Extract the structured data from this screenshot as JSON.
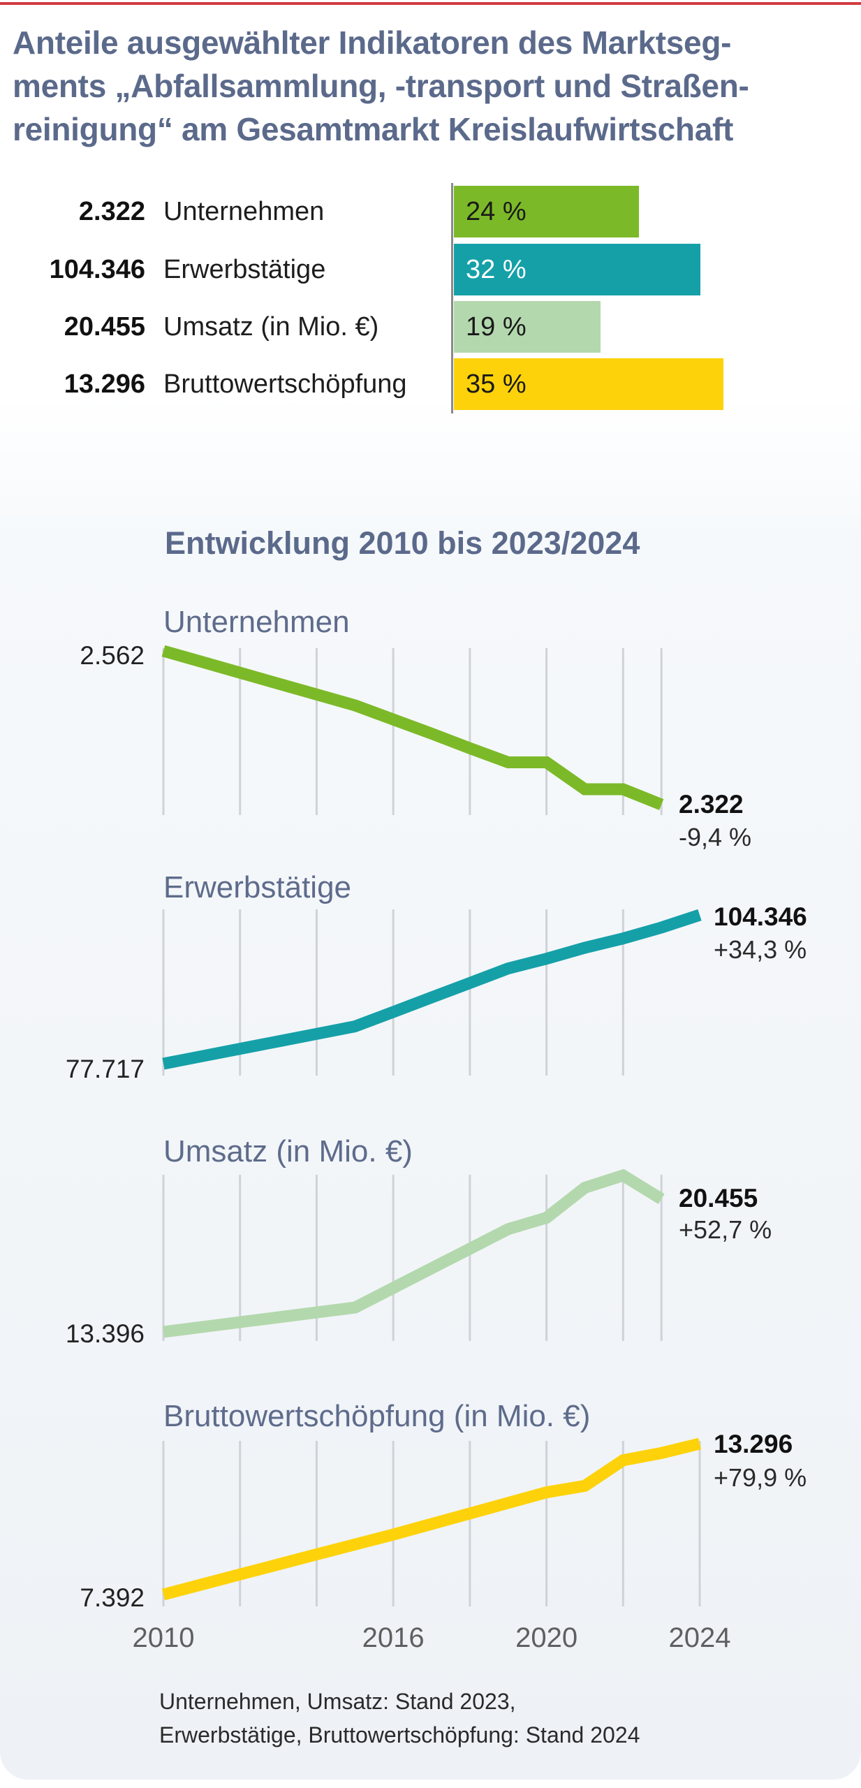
{
  "title_lines": [
    "Anteile ausgewählter Indikatoren des Marktseg-",
    "ments „Abfallsammlung, -transport und Straßen-",
    "reinigung“ am Gesamtmarkt Kreislaufwirtschaft"
  ],
  "colors": {
    "accent_rule": "#d13b41",
    "title": "#5b6a8b",
    "unternehmen": "#7cb928",
    "erwerbstaetige": "#15a0a8",
    "umsatz": "#b3d8ad",
    "bruttowertschoepfung": "#fdd20a",
    "grid": "#cfd2d6"
  },
  "shares": [
    {
      "value": "2.322",
      "label": "Unternehmen",
      "percent": 24,
      "percent_label": "24 %",
      "color": "#7cb928",
      "text_color": "#1a1a1a"
    },
    {
      "value": "104.346",
      "label": "Erwerbstätige",
      "percent": 32,
      "percent_label": "32 %",
      "color": "#15a0a8",
      "text_color": "#ffffff"
    },
    {
      "value": "20.455",
      "label": "Umsatz (in Mio. €)",
      "percent": 19,
      "percent_label": "19 %",
      "color": "#b3d8ad",
      "text_color": "#1a1a1a"
    },
    {
      "value": "13.296",
      "label": "Bruttowertschöpfung",
      "percent": 35,
      "percent_label": "35 %",
      "color": "#fdd20a",
      "text_color": "#1a1a1a"
    }
  ],
  "section_heading": "Entwicklung 2010 bis 2023/2024",
  "footer_lines": [
    "Unternehmen, Umsatz: Stand 2023,",
    "Erwerbstätige, Bruttowertschöpfung: Stand 2024"
  ],
  "chart_data": [
    {
      "type": "bar",
      "title": "Anteile ausgewählter Indikatoren des Marktsegments „Abfallsammlung, -transport und Straßenreinigung“ am Gesamtmarkt Kreislaufwirtschaft",
      "categories": [
        "Unternehmen",
        "Erwerbstätige",
        "Umsatz (in Mio. €)",
        "Bruttowertschöpfung"
      ],
      "values": [
        24,
        32,
        19,
        35
      ],
      "absolute_values": [
        2322,
        104346,
        20455,
        13296
      ],
      "unit": "%",
      "orientation": "horizontal",
      "xlim": [
        0,
        100
      ]
    },
    {
      "type": "line",
      "title": "Unternehmen",
      "x": [
        2010,
        2011,
        2012,
        2013,
        2014,
        2015,
        2016,
        2017,
        2018,
        2019,
        2020,
        2021,
        2022,
        2023
      ],
      "values": [
        2562,
        2545,
        2528,
        2511,
        2494,
        2477,
        2455,
        2433,
        2410,
        2388,
        2388,
        2346,
        2346,
        2322
      ],
      "start_label": "2.562",
      "end_label": "2.322",
      "change_label": "-9,4 %",
      "ylim": [
        2322,
        2562
      ],
      "grid_years": [
        2010,
        2012,
        2014,
        2016,
        2018,
        2020,
        2022,
        2023
      ],
      "color": "#7cb928"
    },
    {
      "type": "line",
      "title": "Erwerbstätige",
      "x": [
        2010,
        2011,
        2012,
        2013,
        2014,
        2015,
        2016,
        2017,
        2018,
        2019,
        2020,
        2021,
        2022,
        2023,
        2024
      ],
      "values": [
        77717,
        79052,
        80387,
        81723,
        83058,
        84393,
        86987,
        89581,
        92175,
        94769,
        96510,
        98469,
        100138,
        102097,
        104346
      ],
      "start_label": "77.717",
      "end_label": "104.346",
      "change_label": "+34,3 %",
      "ylim": [
        77717,
        104346
      ],
      "grid_years": [
        2010,
        2012,
        2014,
        2016,
        2018,
        2020,
        2022
      ],
      "color": "#15a0a8"
    },
    {
      "type": "line",
      "title": "Umsatz (in Mio. €)",
      "x": [
        2010,
        2011,
        2012,
        2013,
        2014,
        2015,
        2016,
        2017,
        2018,
        2019,
        2020,
        2021,
        2022,
        2023
      ],
      "values": [
        13396,
        13655,
        13914,
        14173,
        14432,
        14691,
        15733,
        16775,
        17816,
        18858,
        19463,
        21060,
        21708,
        20455
      ],
      "start_label": "13.396",
      "end_label": "20.455",
      "change_label": "+52,7 %",
      "ylim": [
        13396,
        21708
      ],
      "grid_years": [
        2010,
        2012,
        2014,
        2016,
        2018,
        2020,
        2022,
        2023
      ],
      "color": "#b3d8ad"
    },
    {
      "type": "line",
      "title": "Bruttowertschöpfung (in Mio. €)",
      "x": [
        2010,
        2011,
        2012,
        2013,
        2014,
        2015,
        2016,
        2017,
        2018,
        2019,
        2020,
        2021,
        2022,
        2023,
        2024
      ],
      "values": [
        7392,
        7785,
        8178,
        8570,
        8963,
        9352,
        9741,
        10154,
        10566,
        10979,
        11391,
        11645,
        12645,
        12931,
        13296
      ],
      "start_label": "7.392",
      "end_label": "13.296",
      "change_label": "+79,9 %",
      "ylim": [
        7392,
        13296
      ],
      "grid_years": [
        2010,
        2012,
        2014,
        2016,
        2018,
        2020,
        2022,
        2024
      ],
      "color": "#fdd20a"
    }
  ],
  "x_axis": {
    "tick_labels": [
      "2010",
      "2016",
      "2020",
      "2024"
    ],
    "tick_years": [
      2010,
      2016,
      2020,
      2024
    ],
    "xlim": [
      2010,
      2024
    ]
  }
}
